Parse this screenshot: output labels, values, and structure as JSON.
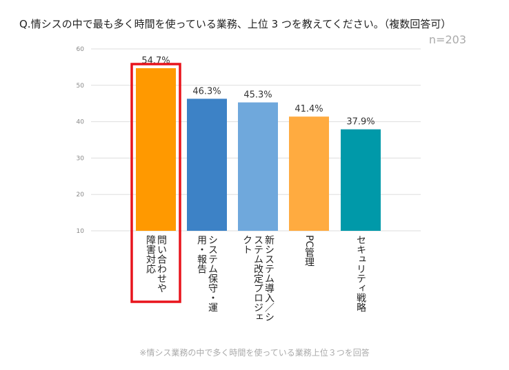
{
  "chart_data": {
    "type": "bar",
    "title": "Q.情シスの中で最も多く時間を使っている業務、上位 3 つを教えてください。（複数回答可）",
    "subtitle": "n=203",
    "annotation": "※情シス業務の中で多く時間を使っている業務上位３つを回答",
    "categories": [
      "問い合わせや障害対応",
      "システム保守・運用・報告",
      "新システム導入／システム改定プロジェクト",
      "PC管理",
      "セキュリティ戦略"
    ],
    "values": [
      54.7,
      46.3,
      45.3,
      41.4,
      37.9
    ],
    "value_labels": [
      "54.7%",
      "46.3%",
      "45.3%",
      "41.4%",
      "37.9%"
    ],
    "colors": [
      "#ff9900",
      "#3d82c6",
      "#6fa8dc",
      "#ffab40",
      "#0099a9"
    ],
    "ylim": [
      10,
      60
    ],
    "yticks": [
      10,
      20,
      30,
      40,
      50,
      60
    ],
    "grid": true
  }
}
